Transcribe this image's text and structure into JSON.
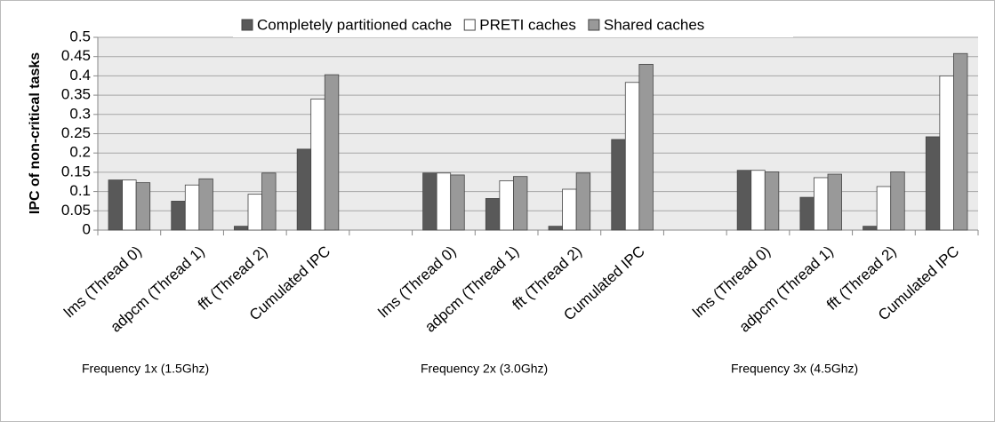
{
  "chart_data": {
    "type": "bar",
    "ylabel": "IPC of non-critical tasks",
    "categories": [
      "lms (Thread 0)",
      "adpcm (Thread 1)",
      "fft (Thread 2)",
      "Cumulated IPC",
      null,
      "lms (Thread 0)",
      "adpcm (Thread 1)",
      "fft (Thread 2)",
      "Cumulated IPC",
      null,
      "lms (Thread 0)",
      "adpcm (Thread 1)",
      "fft (Thread 2)",
      "Cumulated IPC"
    ],
    "series": [
      {
        "name": "Completely partitioned cache",
        "color": "#595959",
        "values": [
          0.13,
          0.075,
          0.01,
          0.21,
          null,
          0.148,
          0.082,
          0.01,
          0.235,
          null,
          0.155,
          0.085,
          0.01,
          0.242
        ]
      },
      {
        "name": "PRETI caches",
        "color": "#ffffff",
        "values": [
          0.13,
          0.117,
          0.093,
          0.34,
          null,
          0.148,
          0.128,
          0.106,
          0.383,
          null,
          0.155,
          0.136,
          0.113,
          0.4
        ]
      },
      {
        "name": "Shared caches",
        "color": "#999999",
        "values": [
          0.123,
          0.133,
          0.148,
          0.403,
          null,
          0.143,
          0.139,
          0.148,
          0.43,
          null,
          0.151,
          0.145,
          0.151,
          0.458
        ]
      }
    ],
    "group_labels": [
      "Frequency 1x (1.5Ghz)",
      "Frequency 2x (3.0Ghz)",
      "Frequency 3x (4.5Ghz)"
    ],
    "ylim": [
      0,
      0.5
    ],
    "yticks": [
      0,
      0.05,
      0.1,
      0.15,
      0.2,
      0.25,
      0.3,
      0.35,
      0.4,
      0.45,
      0.5
    ],
    "grid": true,
    "legend": "top"
  }
}
